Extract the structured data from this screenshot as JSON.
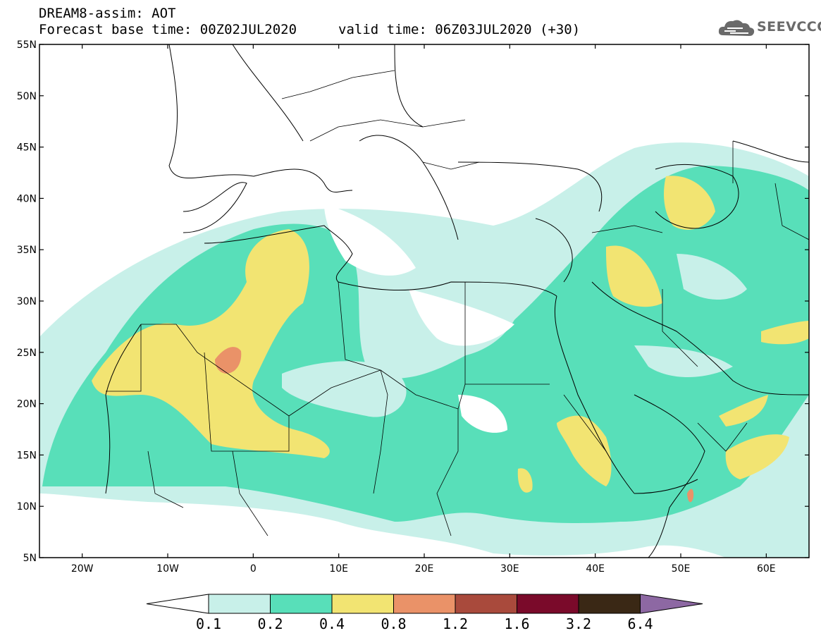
{
  "header": {
    "title": "DREAM8-assim: AOT",
    "base_time": "Forecast base time: 00Z02JUL2020",
    "valid_time": "valid time: 06Z03JUL2020 (+30)"
  },
  "logo": {
    "text": "SEEVCCC"
  },
  "map": {
    "lon_range": [
      -25,
      65
    ],
    "lat_range": [
      5,
      55
    ],
    "lat_labels": [
      "55N",
      "50N",
      "45N",
      "40N",
      "35N",
      "30N",
      "25N",
      "20N",
      "15N",
      "10N",
      "5N"
    ],
    "lat_values": [
      55,
      50,
      45,
      40,
      35,
      30,
      25,
      20,
      15,
      10,
      5
    ],
    "lon_labels": [
      "20W",
      "10W",
      "0",
      "10E",
      "20E",
      "30E",
      "40E",
      "50E",
      "60E"
    ],
    "lon_values": [
      -20,
      -10,
      0,
      10,
      20,
      30,
      40,
      50,
      60
    ]
  },
  "colorbar": {
    "thresholds": [
      "0.1",
      "0.2",
      "0.4",
      "0.8",
      "1.2",
      "1.6",
      "3.2",
      "6.4"
    ],
    "colors": [
      "#ffffff",
      "#c8f0e9",
      "#58dfb9",
      "#f2e472",
      "#ea9268",
      "#a94a3c",
      "#7a0a2a",
      "#3a2815",
      "#8d68a3"
    ]
  }
}
